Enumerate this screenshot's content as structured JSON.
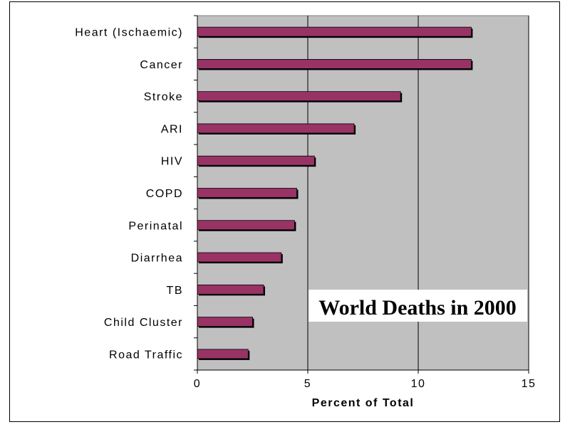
{
  "chart_data": {
    "type": "bar",
    "orientation": "horizontal",
    "title": "World Deaths in 2000",
    "xlabel": "Percent of Total",
    "ylabel": "",
    "categories": [
      "Heart (Ischaemic)",
      "Cancer",
      "Stroke",
      "ARI",
      "HIV",
      "COPD",
      "Perinatal",
      "Diarrhea",
      "TB",
      "Child Cluster",
      "Road Traffic"
    ],
    "values": [
      12.4,
      12.4,
      9.2,
      7.1,
      5.3,
      4.5,
      4.4,
      3.8,
      3.0,
      2.5,
      2.3
    ],
    "xlim": [
      0,
      15
    ],
    "xticks": [
      0,
      5,
      10,
      15
    ],
    "grid": true,
    "legend": "none",
    "colors": {
      "bar": "#993366",
      "plot_background": "#c0c0c0",
      "gridline": "#000000"
    }
  }
}
